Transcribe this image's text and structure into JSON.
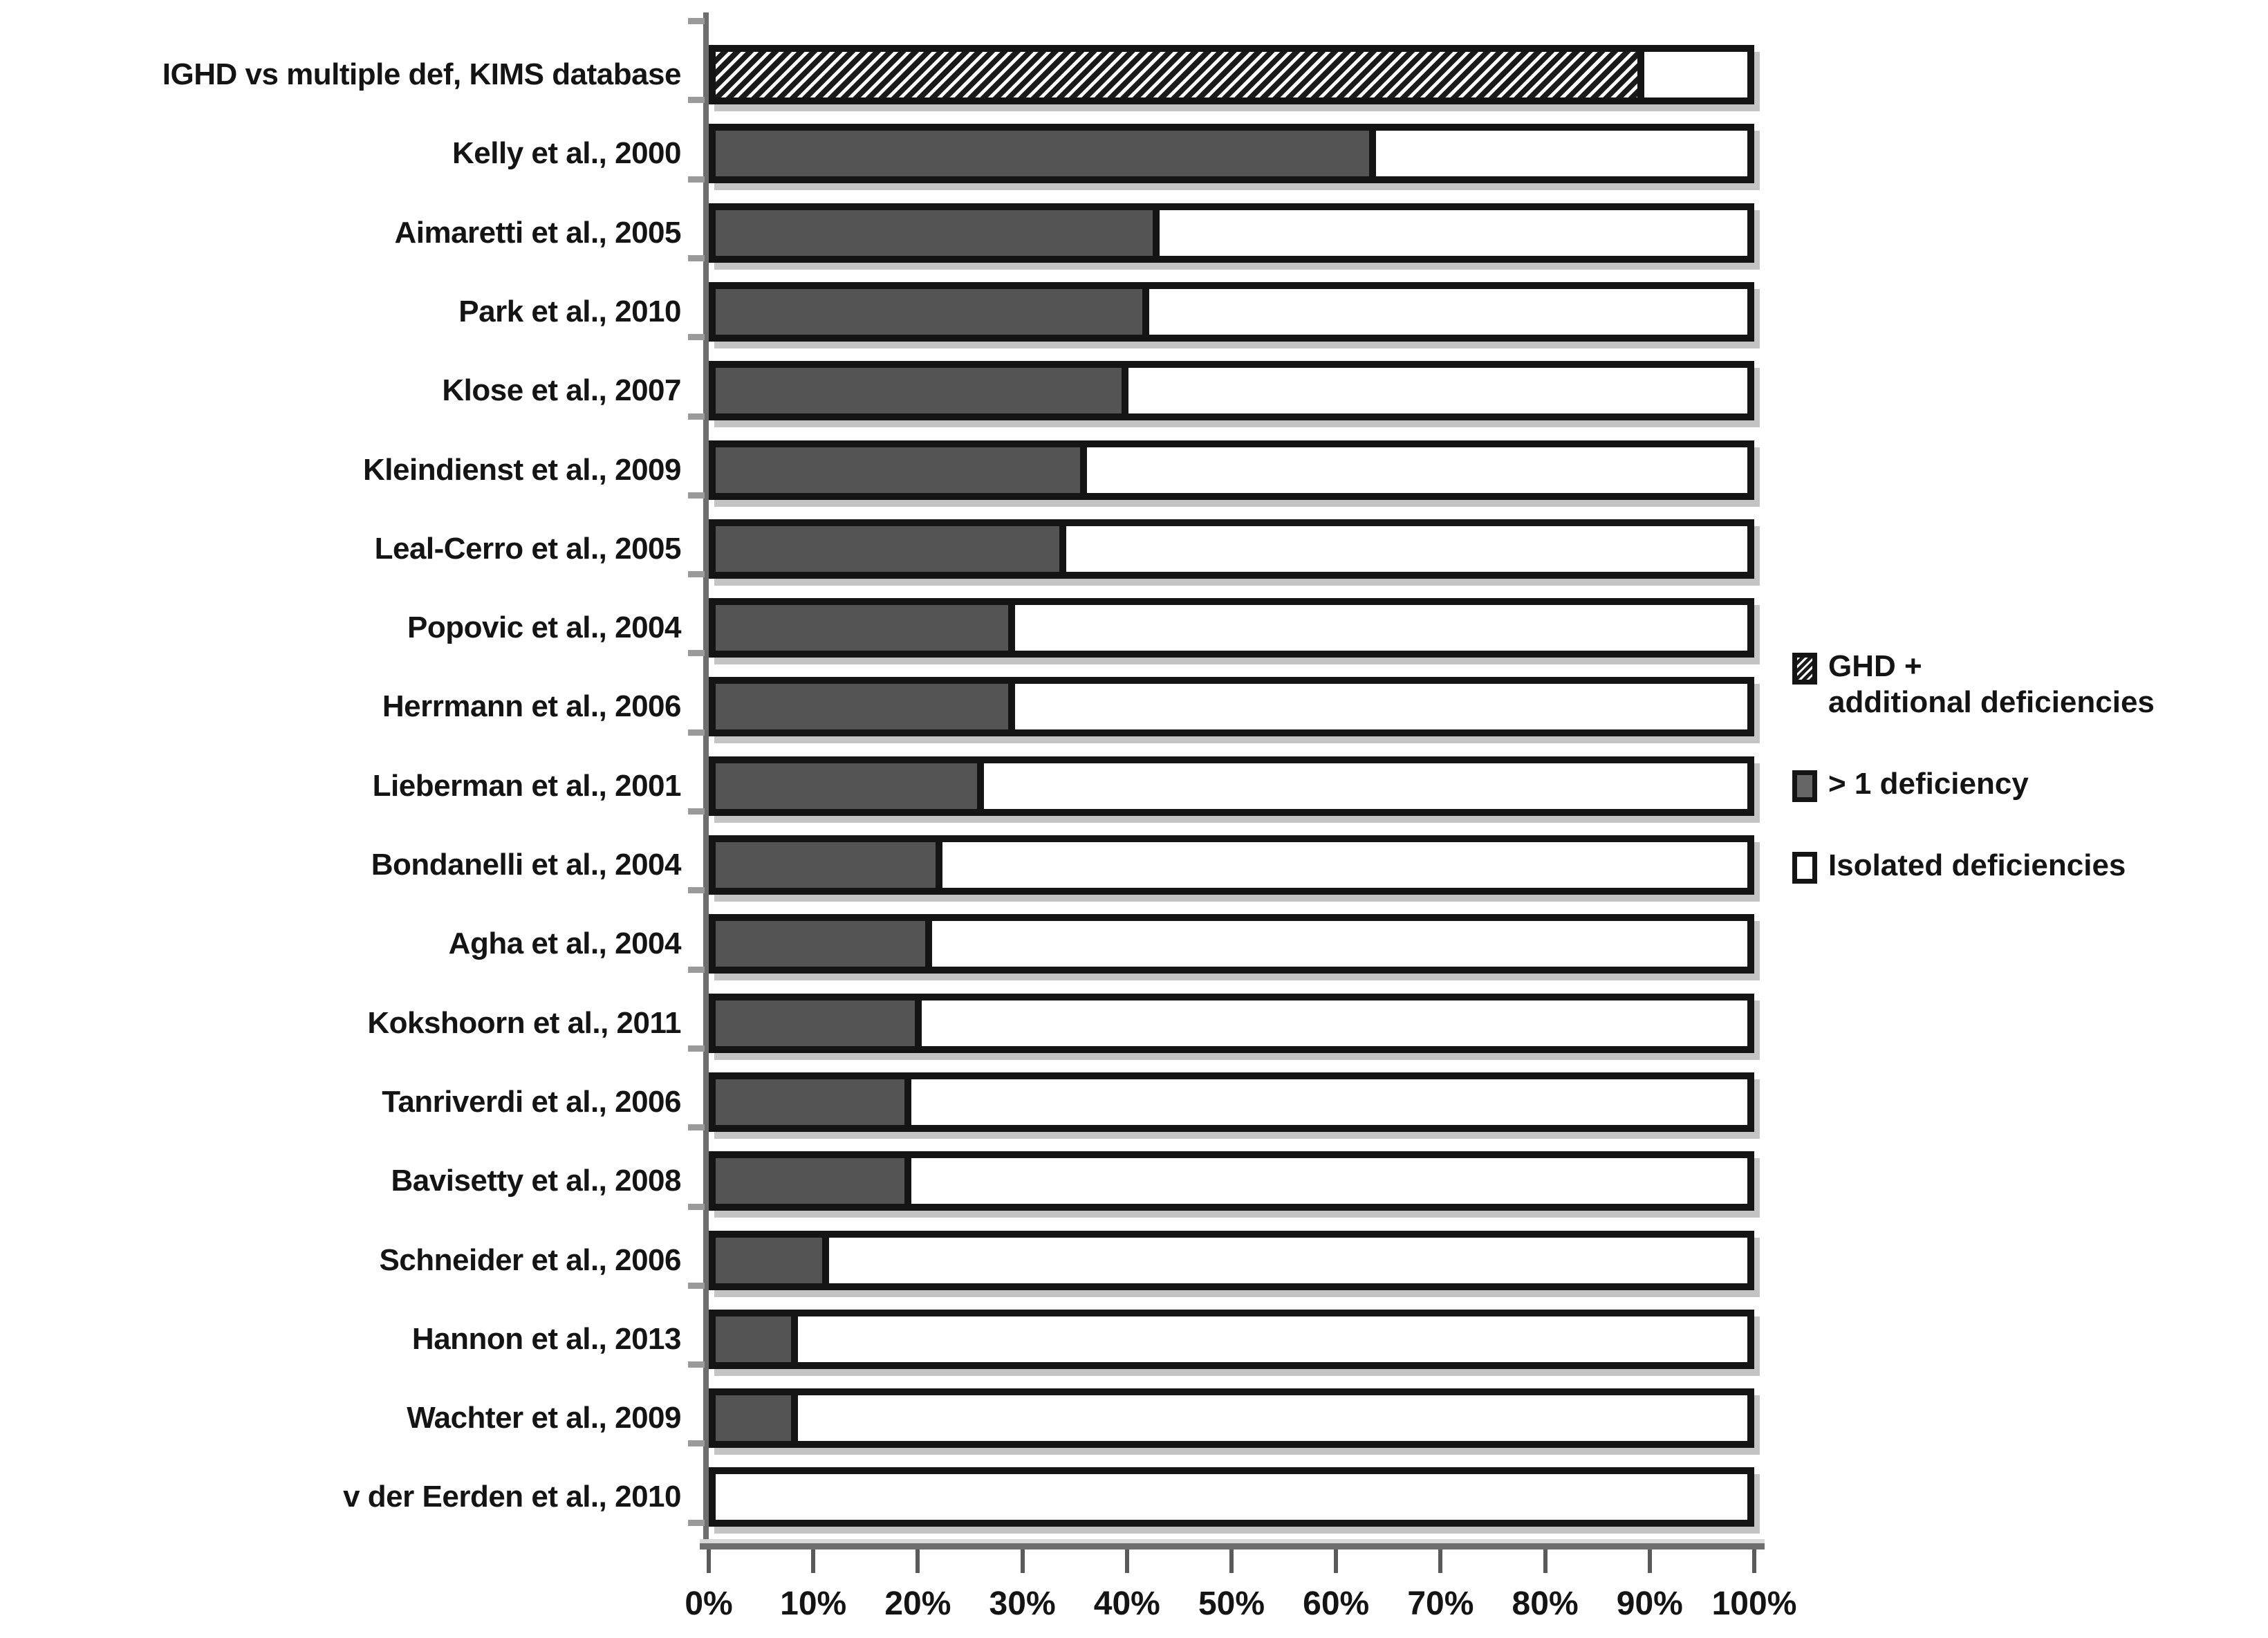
{
  "figure": {
    "background": "#ffffff"
  },
  "colors": {
    "bar_fill_dark": "#545454",
    "bar_border": "#141414",
    "hatch_dark": "#1a1a1a",
    "axis_line": "#6e6e6e",
    "bar_shadow": "#c4c4c4"
  },
  "legend": {
    "position": "right",
    "items": [
      {
        "label": "GHD +\nadditional deficiencies",
        "swatch": "hatched"
      },
      {
        "label": "> 1 deficiency",
        "swatch": "dark"
      },
      {
        "label": "Isolated deficiencies",
        "swatch": "white"
      }
    ]
  },
  "chart_data": {
    "type": "bar",
    "orientation": "horizontal-stacked",
    "title": "",
    "xlabel": "",
    "ylabel": "",
    "xlim": [
      0,
      100
    ],
    "grid": false,
    "x_ticks": [
      "0%",
      "10%",
      "20%",
      "30%",
      "40%",
      "50%",
      "60%",
      "70%",
      "80%",
      "90%",
      "100%"
    ],
    "categories": [
      "IGHD vs multiple def, KIMS database",
      "Kelly et al., 2000",
      "Aimaretti et al., 2005",
      "Park et al., 2010",
      "Klose et al., 2007",
      "Kleindienst et al., 2009",
      "Leal-Cerro et al., 2005",
      "Popovic et al., 2004",
      "Herrmann et al., 2006",
      "Lieberman et al., 2001",
      "Bondanelli et al., 2004",
      "Agha et al., 2004",
      "Kokshoorn et al., 2011",
      "Tanriverdi et al., 2006",
      "Bavisetty et al., 2008",
      "Schneider et al., 2006",
      "Hannon et al., 2013",
      "Wachter et al., 2009",
      "v der Eerden et al., 2010"
    ],
    "series": [
      {
        "name": "GHD + additional deficiencies",
        "style": "hatched",
        "values": [
          90,
          0,
          0,
          0,
          0,
          0,
          0,
          0,
          0,
          0,
          0,
          0,
          0,
          0,
          0,
          0,
          0,
          0,
          0
        ]
      },
      {
        "name": "> 1 deficiency",
        "style": "dark",
        "values": [
          0,
          64,
          43,
          42,
          40,
          36,
          34,
          29,
          29,
          26,
          22,
          21,
          20,
          19,
          19,
          11,
          8,
          8,
          0
        ]
      },
      {
        "name": "Isolated deficiencies",
        "style": "white",
        "values": [
          10,
          36,
          57,
          58,
          60,
          64,
          66,
          71,
          71,
          74,
          78,
          79,
          80,
          81,
          81,
          89,
          92,
          92,
          100
        ]
      }
    ]
  }
}
